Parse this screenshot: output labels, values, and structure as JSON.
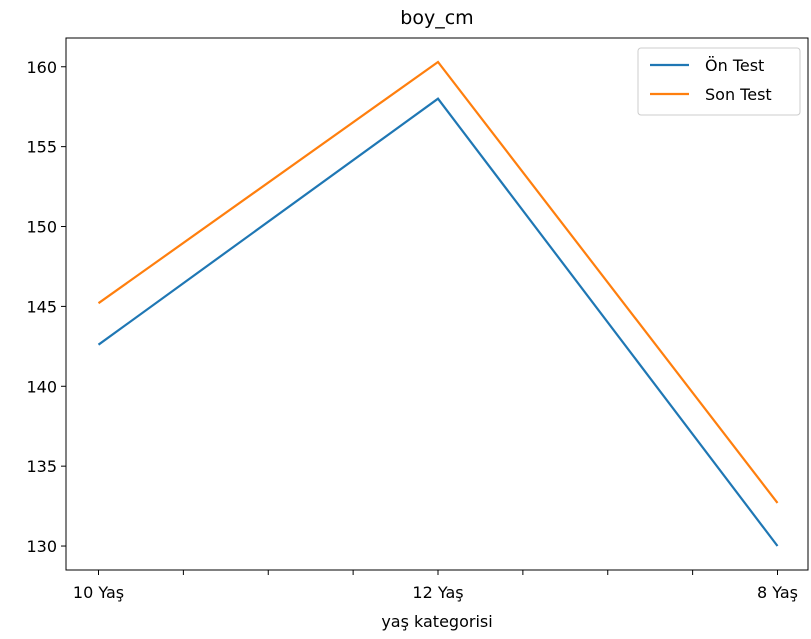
{
  "chart_data": {
    "type": "line",
    "title": "boy_cm",
    "xlabel": "yaş kategorisi",
    "ylabel": "",
    "categories": [
      "10 Yaş",
      "12 Yaş",
      "8 Yaş"
    ],
    "series": [
      {
        "name": "Ön Test",
        "values": [
          142.6,
          158.0,
          130.0
        ],
        "color": "#1f77b4"
      },
      {
        "name": "Son Test",
        "values": [
          145.2,
          160.3,
          132.7
        ],
        "color": "#ff7f0e"
      }
    ],
    "yticks": [
      130,
      135,
      140,
      145,
      150,
      155,
      160
    ],
    "ylim": [
      128.5,
      161.8
    ],
    "minor_x_ticks": 7,
    "grid": false,
    "legend_position": "top-right"
  }
}
